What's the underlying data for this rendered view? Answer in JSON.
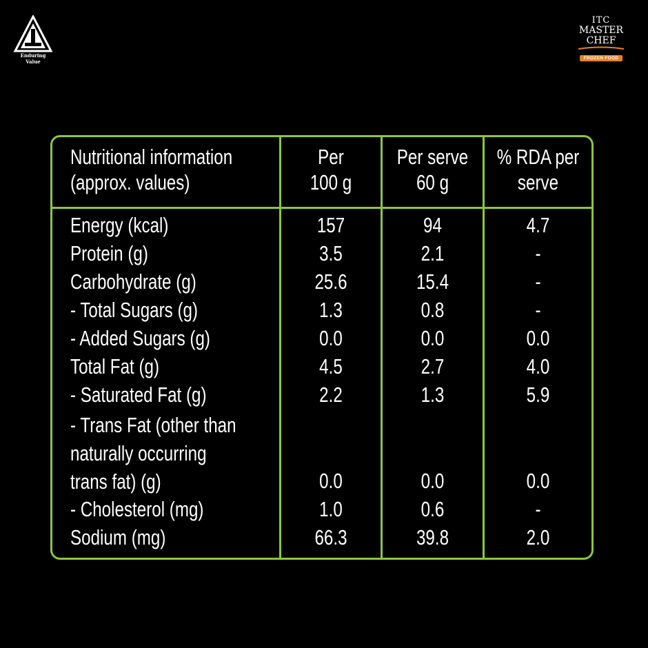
{
  "logos": {
    "itc_tagline": "Enduring Value",
    "masterchef_line1": "ITC",
    "masterchef_line2": "MASTER",
    "masterchef_line3": "CHEF",
    "masterchef_badge": "FROZEN FOOD"
  },
  "colors": {
    "background": "#000000",
    "border": "#8dc63f",
    "text": "#ffffff",
    "badge": "#e8821e"
  },
  "table": {
    "headers": [
      [
        "Nutritional information",
        "(approx. values)"
      ],
      [
        "Per",
        "100 g"
      ],
      [
        "Per serve",
        "60 g"
      ],
      [
        "% RDA per",
        "serve"
      ]
    ],
    "rows": [
      {
        "label": "Energy (kcal)",
        "per100g": "157",
        "perServe": "94",
        "rda": "4.7"
      },
      {
        "label": "Protein (g)",
        "per100g": "3.5",
        "perServe": "2.1",
        "rda": "-"
      },
      {
        "label": "Carbohydrate (g)",
        "per100g": "25.6",
        "perServe": "15.4",
        "rda": "-"
      },
      {
        "label": "- Total Sugars (g)",
        "per100g": "1.3",
        "perServe": "0.8",
        "rda": "-"
      },
      {
        "label": "- Added Sugars (g)",
        "per100g": "0.0",
        "perServe": "0.0",
        "rda": "0.0"
      },
      {
        "label": "Total Fat (g)",
        "per100g": "4.5",
        "perServe": "2.7",
        "rda": "4.0"
      },
      {
        "label": "- Saturated Fat (g)",
        "per100g": "2.2",
        "perServe": "1.3",
        "rda": "5.9"
      },
      {
        "label": "- Trans Fat (other than\nnaturally occurring\ntrans fat) (g)",
        "per100g": "0.0",
        "perServe": "0.0",
        "rda": "0.0"
      },
      {
        "label": "- Cholesterol (mg)",
        "per100g": "1.0",
        "perServe": "0.6",
        "rda": "-"
      },
      {
        "label": "Sodium (mg)",
        "per100g": "66.3",
        "perServe": "39.8",
        "rda": "2.0"
      }
    ]
  }
}
